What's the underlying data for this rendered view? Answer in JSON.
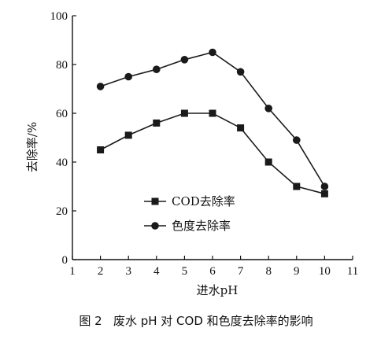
{
  "chart_data": {
    "type": "line",
    "xlabel": "进水pH",
    "ylabel": "去除率/%",
    "xlim": [
      1,
      11
    ],
    "ylim": [
      0,
      100
    ],
    "xticks": [
      1,
      2,
      3,
      4,
      5,
      6,
      7,
      8,
      9,
      10,
      11
    ],
    "yticks": [
      0,
      20,
      40,
      60,
      80,
      100
    ],
    "grid": false,
    "legend_position": "center-left",
    "x": [
      2,
      3,
      4,
      5,
      6,
      7,
      8,
      9,
      10
    ],
    "series": [
      {
        "name": "COD去除率",
        "marker": "square",
        "color": "#1a1a1a",
        "values": [
          45,
          51,
          56,
          60,
          60,
          54,
          40,
          30,
          27
        ]
      },
      {
        "name": "色度去除率",
        "marker": "circle",
        "color": "#1a1a1a",
        "values": [
          71,
          75,
          78,
          82,
          85,
          77,
          62,
          49,
          30
        ]
      }
    ]
  },
  "caption": "图 2   废水 pH 对 COD 和色度去除率的影响"
}
